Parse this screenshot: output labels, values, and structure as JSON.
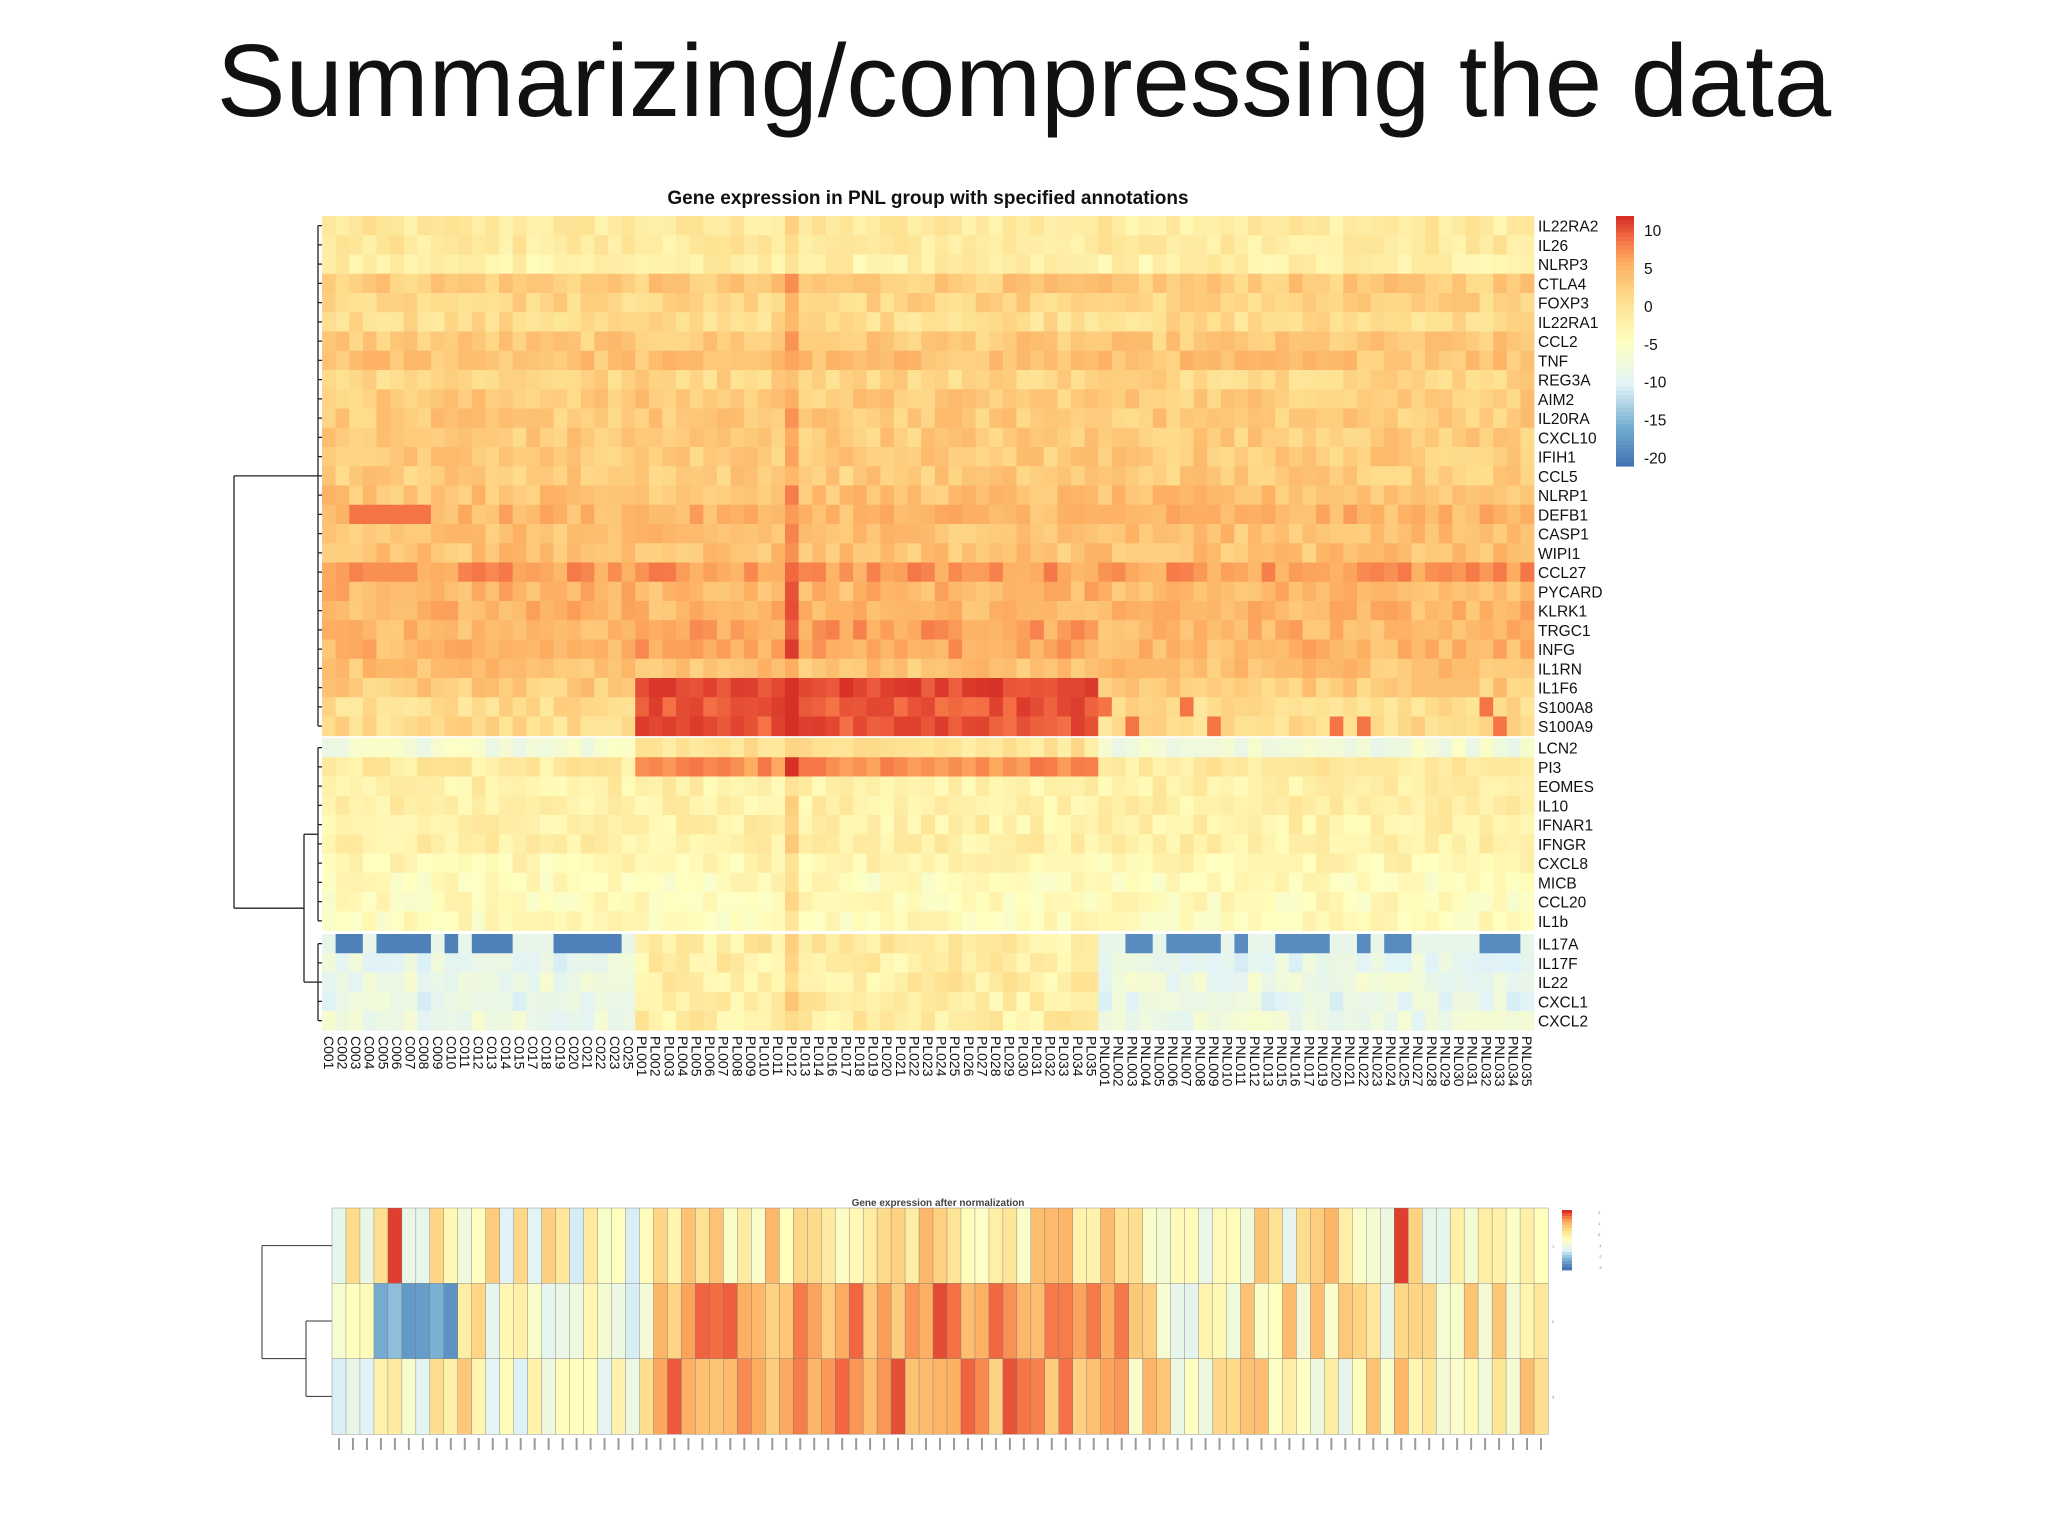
{
  "slide": {
    "title": "Summarizing/compressing the data"
  },
  "chart_data": [
    {
      "type": "heatmap",
      "title": "Gene expression in PNL group with specified annotations",
      "columns": [
        "C001",
        "C002",
        "C003",
        "C004",
        "C005",
        "C006",
        "C007",
        "C008",
        "C009",
        "C010",
        "C011",
        "C012",
        "C013",
        "C014",
        "C015",
        "C017",
        "C018",
        "C019",
        "C020",
        "C021",
        "C022",
        "C023",
        "C025",
        "PL001",
        "PL002",
        "PL003",
        "PL004",
        "PL005",
        "PL006",
        "PL007",
        "PL008",
        "PL009",
        "PL010",
        "PL011",
        "PL012",
        "PL013",
        "PL014",
        "PL016",
        "PL017",
        "PL018",
        "PL019",
        "PL020",
        "PL021",
        "PL022",
        "PL023",
        "PL024",
        "PL025",
        "PL026",
        "PL027",
        "PL028",
        "PL029",
        "PL030",
        "PL031",
        "PL032",
        "PL033",
        "PL034",
        "PL035",
        "PNL001",
        "PNL002",
        "PNL003",
        "PNL004",
        "PNL005",
        "PNL006",
        "PNL007",
        "PNL008",
        "PNL009",
        "PNL010",
        "PNL011",
        "PNL012",
        "PNL013",
        "PNL015",
        "PNL016",
        "PNL017",
        "PNL019",
        "PNL020",
        "PNL021",
        "PNL022",
        "PNL023",
        "PNL024",
        "PNL025",
        "PNL027",
        "PNL028",
        "PNL029",
        "PNL030",
        "PNL031",
        "PNL032",
        "PNL033",
        "PNL034",
        "PNL035"
      ],
      "row_clusters": [
        [
          "IL22RA2",
          "IL26",
          "NLRP3",
          "CTLA4",
          "FOXP3",
          "IL22RA1",
          "CCL2",
          "TNF",
          "REG3A",
          "AIM2",
          "IL20RA",
          "CXCL10",
          "IFIH1",
          "CCL5",
          "NLRP1",
          "DEFB1",
          "CASP1",
          "WIPI1",
          "CCL27",
          "PYCARD",
          "KLRK1",
          "TRGC1",
          "INFG",
          "IL1RN",
          "IL1F6",
          "S100A8",
          "S100A9"
        ],
        [
          "LCN2",
          "PI3",
          "EOMES",
          "IL10",
          "IFNAR1",
          "IFNGR",
          "CXCL8",
          "MICB",
          "CCL20",
          "IL1b"
        ],
        [
          "IL17A",
          "IL17F",
          "IL22",
          "CXCL1",
          "CXCL2"
        ]
      ],
      "legend": {
        "ticks": [
          "10",
          "5",
          "0",
          "-5",
          "-10",
          "-15",
          "-20"
        ],
        "range": [
          -21,
          12
        ]
      },
      "colors": {
        "high": "#d73027",
        "mid": "#ffffbf",
        "low": "#4575b4"
      }
    },
    {
      "type": "heatmap",
      "title": "Gene expression after normalization",
      "n_rows": 3,
      "n_columns": 87,
      "legend_ticks": [
        "2",
        "1",
        "0",
        "-1",
        "-2",
        "-3"
      ],
      "row_labels": [
        "1",
        "2",
        "3"
      ]
    }
  ]
}
